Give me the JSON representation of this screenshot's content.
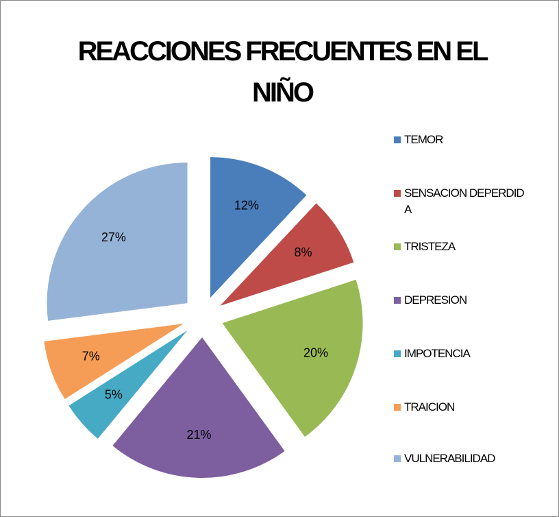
{
  "chart_data": {
    "type": "pie",
    "title": "REACCIONES FRECUENTES EN EL NIÑO",
    "categories": [
      "TEMOR",
      "SENSACION DEPERDIDA",
      "TRISTEZA",
      "DEPRESION",
      "IMPOTENCIA",
      "TRAICION",
      "VULNERABILIDAD"
    ],
    "values": [
      12,
      8,
      20,
      21,
      5,
      7,
      27
    ],
    "value_labels": [
      "12%",
      "8%",
      "20%",
      "21%",
      "5%",
      "7%",
      "27%"
    ],
    "colors": [
      "#4a7ebb",
      "#be4b48",
      "#98b954",
      "#7d5fa0",
      "#46aac5",
      "#f59d56",
      "#95b3d7"
    ],
    "legend": "right"
  }
}
